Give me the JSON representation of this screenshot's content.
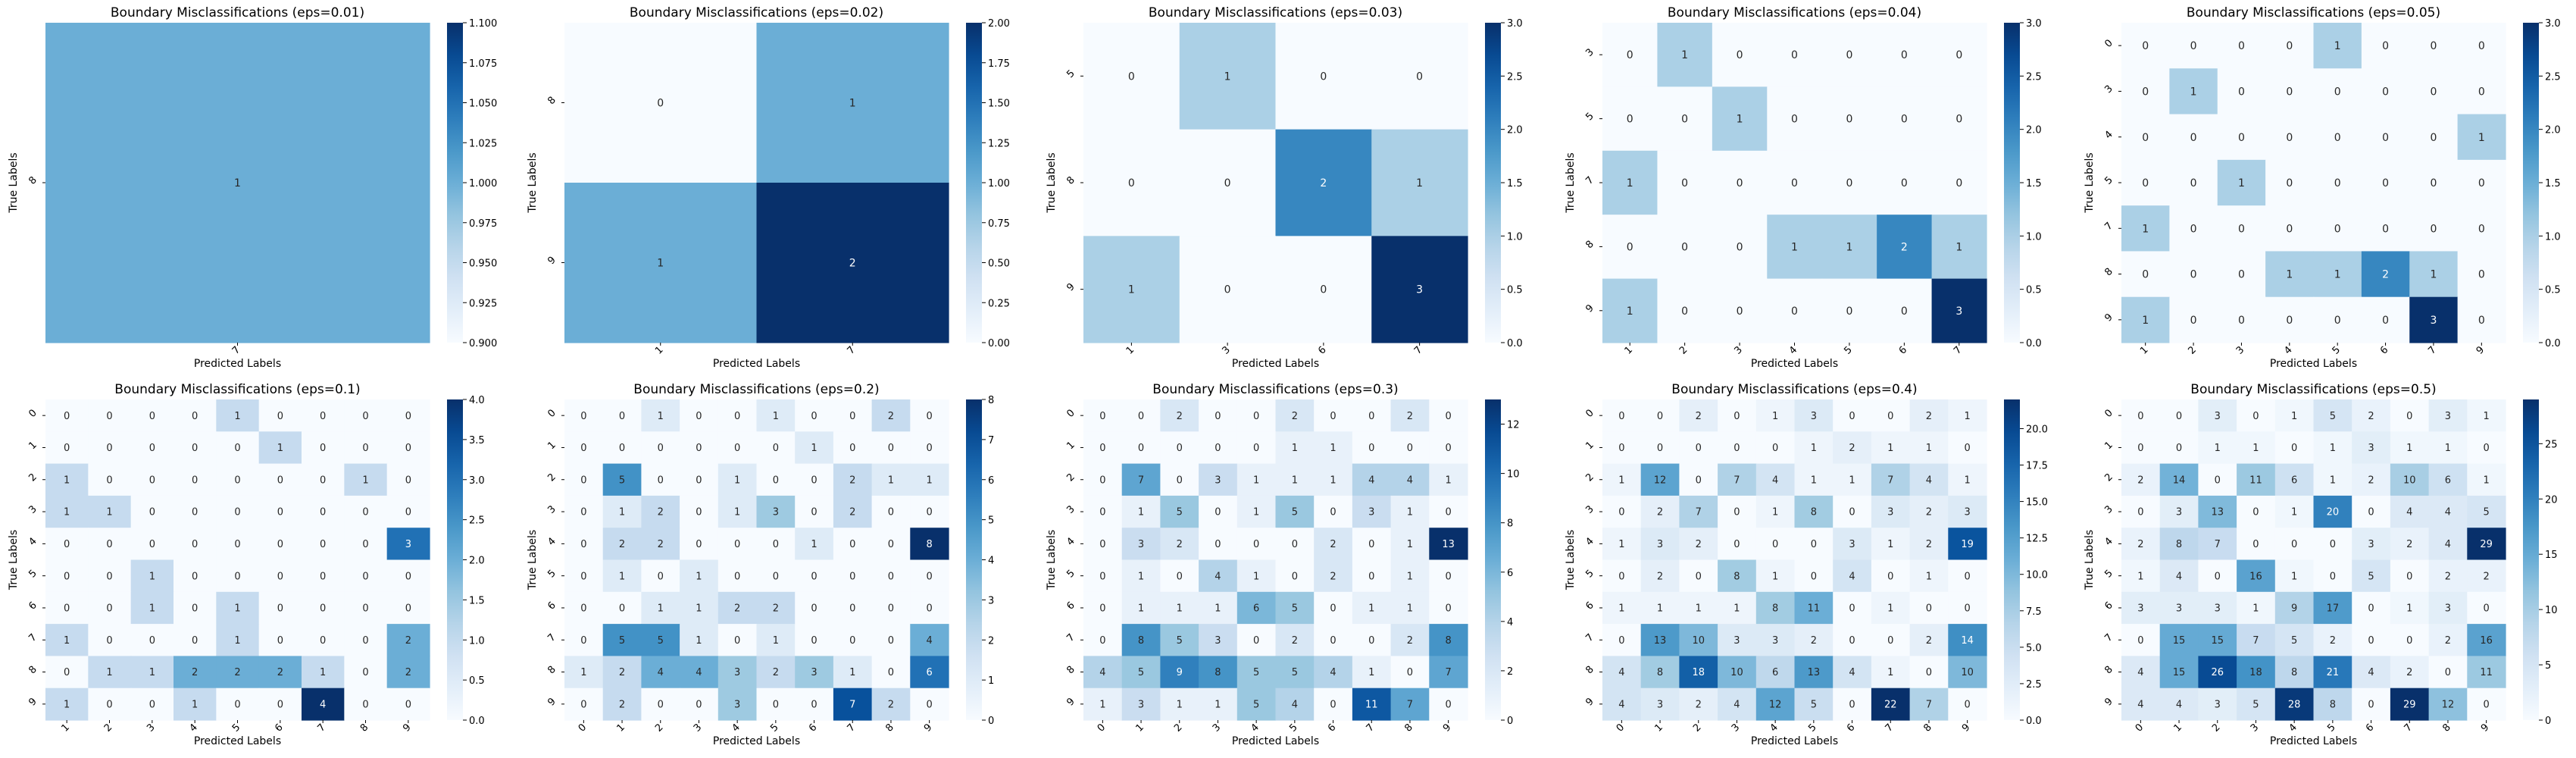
{
  "chart_data": [
    {
      "type": "heatmap",
      "title": "Boundary Misclassifications (eps=0.01)",
      "xlabel": "Predicted Labels",
      "ylabel": "True Labels",
      "x_categories": [
        "7"
      ],
      "y_categories": [
        "8"
      ],
      "values": [
        [
          1
        ]
      ],
      "colorbar": {
        "min": 0.9,
        "max": 1.1,
        "ticks": [
          "0.900",
          "0.925",
          "0.950",
          "0.975",
          "1.000",
          "1.025",
          "1.050",
          "1.075",
          "1.100"
        ]
      }
    },
    {
      "type": "heatmap",
      "title": "Boundary Misclassifications (eps=0.02)",
      "xlabel": "Predicted Labels",
      "ylabel": "True Labels",
      "x_categories": [
        "1",
        "7"
      ],
      "y_categories": [
        "8",
        "9"
      ],
      "values": [
        [
          0,
          1
        ],
        [
          1,
          2
        ]
      ],
      "colorbar": {
        "min": 0,
        "max": 2,
        "ticks": [
          "0.00",
          "0.25",
          "0.50",
          "0.75",
          "1.00",
          "1.25",
          "1.50",
          "1.75",
          "2.00"
        ]
      }
    },
    {
      "type": "heatmap",
      "title": "Boundary Misclassifications (eps=0.03)",
      "xlabel": "Predicted Labels",
      "ylabel": "True Labels",
      "x_categories": [
        "1",
        "3",
        "6",
        "7"
      ],
      "y_categories": [
        "5",
        "8",
        "9"
      ],
      "values": [
        [
          0,
          1,
          0,
          0
        ],
        [
          0,
          0,
          2,
          1
        ],
        [
          1,
          0,
          0,
          3
        ]
      ],
      "colorbar": {
        "min": 0,
        "max": 3,
        "ticks": [
          "0.0",
          "0.5",
          "1.0",
          "1.5",
          "2.0",
          "2.5",
          "3.0"
        ]
      }
    },
    {
      "type": "heatmap",
      "title": "Boundary Misclassifications (eps=0.04)",
      "xlabel": "Predicted Labels",
      "ylabel": "True Labels",
      "x_categories": [
        "1",
        "2",
        "3",
        "4",
        "5",
        "6",
        "7"
      ],
      "y_categories": [
        "3",
        "5",
        "7",
        "8",
        "9"
      ],
      "values": [
        [
          0,
          1,
          0,
          0,
          0,
          0,
          0
        ],
        [
          0,
          0,
          1,
          0,
          0,
          0,
          0
        ],
        [
          1,
          0,
          0,
          0,
          0,
          0,
          0
        ],
        [
          0,
          0,
          0,
          1,
          1,
          2,
          1
        ],
        [
          1,
          0,
          0,
          0,
          0,
          0,
          3
        ]
      ],
      "colorbar": {
        "min": 0,
        "max": 3,
        "ticks": [
          "0.0",
          "0.5",
          "1.0",
          "1.5",
          "2.0",
          "2.5",
          "3.0"
        ]
      }
    },
    {
      "type": "heatmap",
      "title": "Boundary Misclassifications (eps=0.05)",
      "xlabel": "Predicted Labels",
      "ylabel": "True Labels",
      "x_categories": [
        "1",
        "2",
        "3",
        "4",
        "5",
        "6",
        "7",
        "9"
      ],
      "y_categories": [
        "0",
        "3",
        "4",
        "5",
        "7",
        "8",
        "9"
      ],
      "values": [
        [
          0,
          0,
          0,
          0,
          1,
          0,
          0,
          0
        ],
        [
          0,
          1,
          0,
          0,
          0,
          0,
          0,
          0
        ],
        [
          0,
          0,
          0,
          0,
          0,
          0,
          0,
          1
        ],
        [
          0,
          0,
          1,
          0,
          0,
          0,
          0,
          0
        ],
        [
          1,
          0,
          0,
          0,
          0,
          0,
          0,
          0
        ],
        [
          0,
          0,
          0,
          1,
          1,
          2,
          1,
          0
        ],
        [
          1,
          0,
          0,
          0,
          0,
          0,
          3,
          0
        ]
      ],
      "colorbar": {
        "min": 0,
        "max": 3,
        "ticks": [
          "0.0",
          "0.5",
          "1.0",
          "1.5",
          "2.0",
          "2.5",
          "3.0"
        ]
      }
    },
    {
      "type": "heatmap",
      "title": "Boundary Misclassifications (eps=0.1)",
      "xlabel": "Predicted Labels",
      "ylabel": "True Labels",
      "x_categories": [
        "1",
        "2",
        "3",
        "4",
        "5",
        "6",
        "7",
        "8",
        "9"
      ],
      "y_categories": [
        "0",
        "1",
        "2",
        "3",
        "4",
        "5",
        "6",
        "7",
        "8",
        "9"
      ],
      "values": [
        [
          0,
          0,
          0,
          0,
          1,
          0,
          0,
          0,
          0
        ],
        [
          0,
          0,
          0,
          0,
          0,
          1,
          0,
          0,
          0
        ],
        [
          1,
          0,
          0,
          0,
          0,
          0,
          0,
          1,
          0
        ],
        [
          1,
          1,
          0,
          0,
          0,
          0,
          0,
          0,
          0
        ],
        [
          0,
          0,
          0,
          0,
          0,
          0,
          0,
          0,
          3
        ],
        [
          0,
          0,
          1,
          0,
          0,
          0,
          0,
          0,
          0
        ],
        [
          0,
          0,
          1,
          0,
          1,
          0,
          0,
          0,
          0
        ],
        [
          1,
          0,
          0,
          0,
          1,
          0,
          0,
          0,
          2
        ],
        [
          0,
          1,
          1,
          2,
          2,
          2,
          1,
          0,
          2
        ],
        [
          1,
          0,
          0,
          1,
          0,
          0,
          4,
          0,
          0
        ]
      ],
      "colorbar": {
        "min": 0,
        "max": 4,
        "ticks": [
          "0.0",
          "0.5",
          "1.0",
          "1.5",
          "2.0",
          "2.5",
          "3.0",
          "3.5",
          "4.0"
        ]
      }
    },
    {
      "type": "heatmap",
      "title": "Boundary Misclassifications (eps=0.2)",
      "xlabel": "Predicted Labels",
      "ylabel": "True Labels",
      "x_categories": [
        "0",
        "1",
        "2",
        "3",
        "4",
        "5",
        "6",
        "7",
        "8",
        "9"
      ],
      "y_categories": [
        "0",
        "1",
        "2",
        "3",
        "4",
        "5",
        "6",
        "7",
        "8",
        "9"
      ],
      "values": [
        [
          0,
          0,
          1,
          0,
          0,
          1,
          0,
          0,
          2,
          0
        ],
        [
          0,
          0,
          0,
          0,
          0,
          0,
          1,
          0,
          0,
          0
        ],
        [
          0,
          5,
          0,
          0,
          1,
          0,
          0,
          2,
          1,
          1
        ],
        [
          0,
          1,
          2,
          0,
          1,
          3,
          0,
          2,
          0,
          0
        ],
        [
          0,
          2,
          2,
          0,
          0,
          0,
          1,
          0,
          0,
          8
        ],
        [
          0,
          1,
          0,
          1,
          0,
          0,
          0,
          0,
          0,
          0
        ],
        [
          0,
          0,
          1,
          1,
          2,
          2,
          0,
          0,
          0,
          0
        ],
        [
          0,
          5,
          5,
          1,
          0,
          1,
          0,
          0,
          0,
          4
        ],
        [
          1,
          2,
          4,
          4,
          3,
          2,
          3,
          1,
          0,
          6
        ],
        [
          0,
          2,
          0,
          0,
          3,
          0,
          0,
          7,
          2,
          0
        ]
      ],
      "colorbar": {
        "min": 0,
        "max": 8,
        "ticks": [
          "0",
          "1",
          "2",
          "3",
          "4",
          "5",
          "6",
          "7",
          "8"
        ]
      }
    },
    {
      "type": "heatmap",
      "title": "Boundary Misclassifications (eps=0.3)",
      "xlabel": "Predicted Labels",
      "ylabel": "True Labels",
      "x_categories": [
        "0",
        "1",
        "2",
        "3",
        "4",
        "5",
        "6",
        "7",
        "8",
        "9"
      ],
      "y_categories": [
        "0",
        "1",
        "2",
        "3",
        "4",
        "5",
        "6",
        "7",
        "8",
        "9"
      ],
      "values": [
        [
          0,
          0,
          2,
          0,
          0,
          2,
          0,
          0,
          2,
          0
        ],
        [
          0,
          0,
          0,
          0,
          0,
          1,
          1,
          0,
          0,
          0
        ],
        [
          0,
          7,
          0,
          3,
          1,
          1,
          1,
          4,
          4,
          1
        ],
        [
          0,
          1,
          5,
          0,
          1,
          5,
          0,
          3,
          1,
          0
        ],
        [
          0,
          3,
          2,
          0,
          0,
          0,
          2,
          0,
          1,
          13
        ],
        [
          0,
          1,
          0,
          4,
          1,
          0,
          2,
          0,
          1,
          0
        ],
        [
          0,
          1,
          1,
          1,
          6,
          5,
          0,
          1,
          1,
          0
        ],
        [
          0,
          8,
          5,
          3,
          0,
          2,
          0,
          0,
          2,
          8
        ],
        [
          4,
          5,
          9,
          8,
          5,
          5,
          4,
          1,
          0,
          7
        ],
        [
          1,
          3,
          1,
          1,
          5,
          4,
          0,
          11,
          7,
          0
        ]
      ],
      "colorbar": {
        "min": 0,
        "max": 13,
        "ticks": [
          "0",
          "2",
          "4",
          "6",
          "8",
          "10",
          "12"
        ]
      }
    },
    {
      "type": "heatmap",
      "title": "Boundary Misclassifications (eps=0.4)",
      "xlabel": "Predicted Labels",
      "ylabel": "True Labels",
      "x_categories": [
        "0",
        "1",
        "2",
        "3",
        "4",
        "5",
        "6",
        "7",
        "8",
        "9"
      ],
      "y_categories": [
        "0",
        "1",
        "2",
        "3",
        "4",
        "5",
        "6",
        "7",
        "8",
        "9"
      ],
      "values": [
        [
          0,
          0,
          2,
          0,
          1,
          3,
          0,
          0,
          2,
          1
        ],
        [
          0,
          0,
          0,
          0,
          0,
          1,
          2,
          1,
          1,
          0
        ],
        [
          1,
          12,
          0,
          7,
          4,
          1,
          1,
          7,
          4,
          1
        ],
        [
          0,
          2,
          7,
          0,
          1,
          8,
          0,
          3,
          2,
          3
        ],
        [
          1,
          3,
          2,
          0,
          0,
          0,
          3,
          1,
          2,
          19
        ],
        [
          0,
          2,
          0,
          8,
          1,
          0,
          4,
          0,
          1,
          0
        ],
        [
          1,
          1,
          1,
          1,
          8,
          11,
          0,
          1,
          0,
          0
        ],
        [
          0,
          13,
          10,
          3,
          3,
          2,
          0,
          0,
          2,
          14
        ],
        [
          4,
          8,
          18,
          10,
          6,
          13,
          4,
          1,
          0,
          10
        ],
        [
          4,
          3,
          2,
          4,
          12,
          5,
          0,
          22,
          7,
          0
        ]
      ],
      "colorbar": {
        "min": 0,
        "max": 22,
        "ticks": [
          "0.0",
          "2.5",
          "5.0",
          "7.5",
          "10.0",
          "12.5",
          "15.0",
          "17.5",
          "20.0"
        ]
      }
    },
    {
      "type": "heatmap",
      "title": "Boundary Misclassifications (eps=0.5)",
      "xlabel": "Predicted Labels",
      "ylabel": "True Labels",
      "x_categories": [
        "0",
        "1",
        "2",
        "3",
        "4",
        "5",
        "6",
        "7",
        "8",
        "9"
      ],
      "y_categories": [
        "0",
        "1",
        "2",
        "3",
        "4",
        "5",
        "6",
        "7",
        "8",
        "9"
      ],
      "values": [
        [
          0,
          0,
          3,
          0,
          1,
          5,
          2,
          0,
          3,
          1
        ],
        [
          0,
          0,
          1,
          1,
          0,
          1,
          3,
          1,
          1,
          0
        ],
        [
          2,
          14,
          0,
          11,
          6,
          1,
          2,
          10,
          6,
          1
        ],
        [
          0,
          3,
          13,
          0,
          1,
          20,
          0,
          4,
          4,
          5
        ],
        [
          2,
          8,
          7,
          0,
          0,
          0,
          3,
          2,
          4,
          29
        ],
        [
          1,
          4,
          0,
          16,
          1,
          0,
          5,
          0,
          2,
          2
        ],
        [
          3,
          3,
          3,
          1,
          9,
          17,
          0,
          1,
          3,
          0
        ],
        [
          0,
          15,
          15,
          7,
          5,
          2,
          0,
          0,
          2,
          16
        ],
        [
          4,
          15,
          26,
          18,
          8,
          21,
          4,
          2,
          0,
          11
        ],
        [
          4,
          4,
          3,
          5,
          28,
          8,
          0,
          29,
          12,
          0
        ]
      ],
      "colorbar": {
        "min": 0,
        "max": 29,
        "ticks": [
          "0",
          "5",
          "10",
          "15",
          "20",
          "25"
        ]
      }
    }
  ]
}
